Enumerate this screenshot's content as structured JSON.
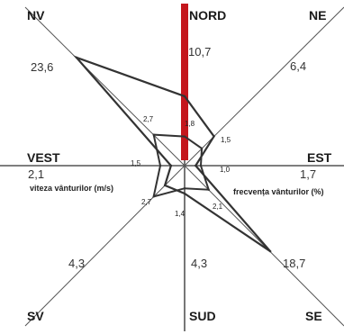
{
  "chart_data": {
    "type": "radar",
    "directions": [
      {
        "key": "N",
        "label": "NORD"
      },
      {
        "key": "NE",
        "label": "NE"
      },
      {
        "key": "E",
        "label": "EST"
      },
      {
        "key": "SE",
        "label": "SE"
      },
      {
        "key": "S",
        "label": "SUD"
      },
      {
        "key": "SW",
        "label": "SV"
      },
      {
        "key": "W",
        "label": "VEST"
      },
      {
        "key": "NW",
        "label": "NV"
      }
    ],
    "frequency": {
      "name": "frecvența vânturilor (%)",
      "labels": [
        "10,7",
        "6,4",
        "1,7",
        "18,7",
        "4,3",
        "4,3",
        "2,1",
        "23,6"
      ],
      "values": [
        10.7,
        6.4,
        1.7,
        18.7,
        4.3,
        4.3,
        2.1,
        23.6
      ]
    },
    "speed": {
      "name": "viteza vânturilor (m/s)",
      "labels": [
        "1,8",
        "1,5",
        "1,0",
        "2,1",
        "1,4",
        "2,7",
        "1,5",
        "2,7"
      ],
      "values": [
        1.8,
        1.5,
        1.0,
        2.1,
        1.4,
        2.7,
        1.5,
        2.7
      ]
    },
    "calm_highlight": {
      "direction": "N",
      "color": "#c4161c"
    },
    "colors": {
      "axes": "#555555",
      "polygon": "#333333",
      "highlight": "#c4161c"
    }
  }
}
